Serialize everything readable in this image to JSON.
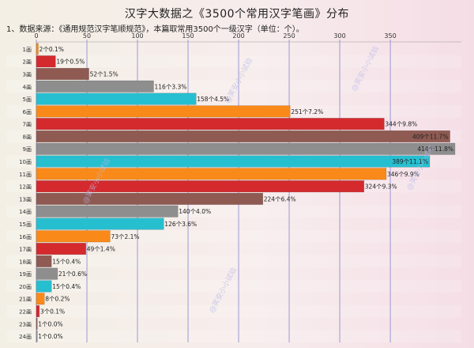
{
  "header": {
    "title": "汉字大数据之《3500个常用汉字笔画》分布",
    "subtitle": "1、数据来源：《通用规范汉字笔顺规范》，本篇取常用3500个一级汉字（单位：个）。"
  },
  "watermark": "@笑安小小试验",
  "colors": {
    "orange": "#f98a19",
    "red": "#d42a2e",
    "brown": "#8f5a52",
    "gray": "#8e8e8e",
    "cyan": "#26bfd0",
    "gridline": "#6a6acb"
  },
  "chart_data": {
    "type": "bar",
    "orientation": "horizontal",
    "categories": [
      "1画",
      "2画",
      "3画",
      "4画",
      "5画",
      "6画",
      "7画",
      "8画",
      "9画",
      "10画",
      "11画",
      "12画",
      "13画",
      "14画",
      "15画",
      "16画",
      "17画",
      "18画",
      "19画",
      "20画",
      "21画",
      "22画",
      "23画",
      "24画"
    ],
    "values": [
      2,
      19,
      52,
      116,
      158,
      251,
      344,
      409,
      414,
      389,
      346,
      324,
      224,
      140,
      126,
      73,
      49,
      15,
      21,
      15,
      8,
      3,
      1,
      1
    ],
    "labels": [
      "2个0.1%",
      "19个0.5%",
      "52个1.5%",
      "116个3.3%",
      "158个4.5%",
      "251个7.2%",
      "344个9.8%",
      "409个11.7%",
      "414个11.8%",
      "389个11.1%",
      "346个9.9%",
      "324个9.3%",
      "224个6.4%",
      "140个4.0%",
      "126个3.6%",
      "73个2.1%",
      "49个1.4%",
      "15个0.4%",
      "21个0.6%",
      "15个0.4%",
      "8个0.2%",
      "3个0.1%",
      "1个0.0%",
      "1个0.0%"
    ],
    "bar_colors": [
      "orange",
      "red",
      "brown",
      "gray",
      "cyan",
      "orange",
      "red",
      "brown",
      "gray",
      "cyan",
      "orange",
      "red",
      "brown",
      "gray",
      "cyan",
      "orange",
      "red",
      "brown",
      "gray",
      "cyan",
      "orange",
      "red",
      "brown",
      "gray"
    ],
    "xticks": [
      0,
      50,
      100,
      150,
      200,
      250,
      300,
      350
    ],
    "xlim": [
      0,
      414
    ],
    "grid": true
  }
}
